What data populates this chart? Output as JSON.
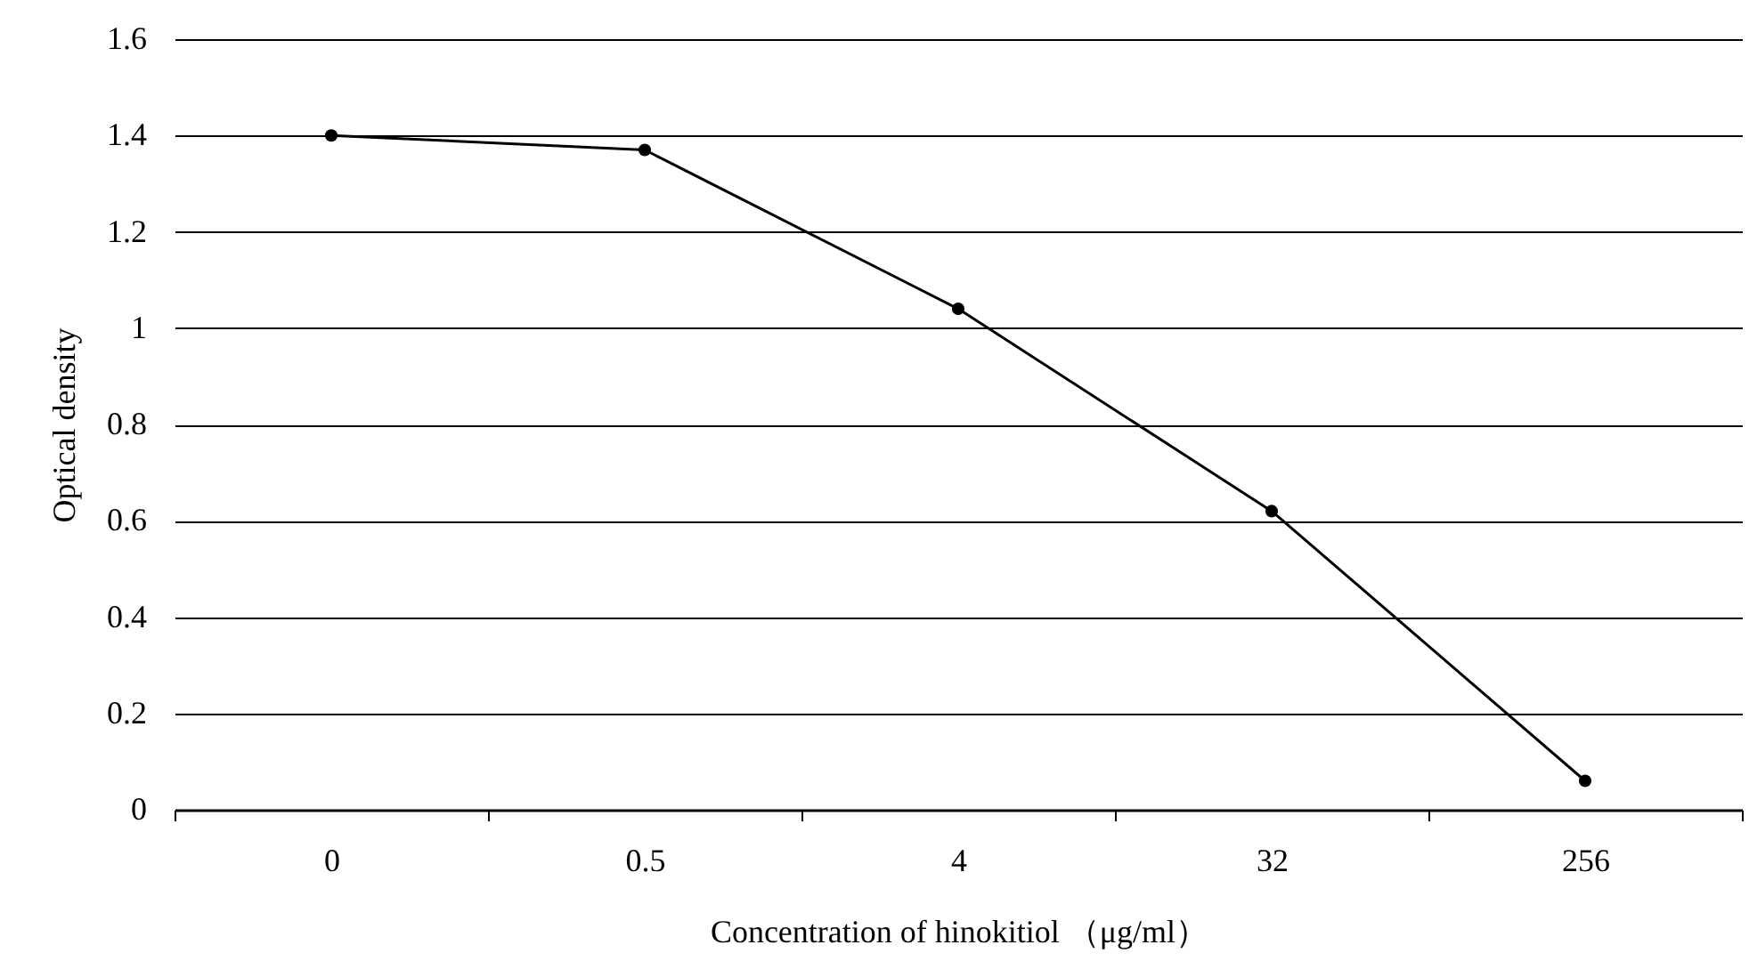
{
  "chart_data": {
    "type": "line",
    "xlabel": "Concentration of hinokitiol （μg/ml）",
    "ylabel": "Optical density",
    "categories": [
      "0",
      "0.5",
      "4",
      "32",
      "256"
    ],
    "series": [
      {
        "color": "#000000",
        "values": [
          1.4,
          1.37,
          1.04,
          0.62,
          0.06
        ]
      }
    ],
    "ylim": [
      0,
      1.6
    ],
    "yticks": [
      0,
      0.2,
      0.4,
      0.6,
      0.8,
      1,
      1.2,
      1.4,
      1.6
    ],
    "grid": "y",
    "marker": "circle",
    "line_style": "solid"
  }
}
